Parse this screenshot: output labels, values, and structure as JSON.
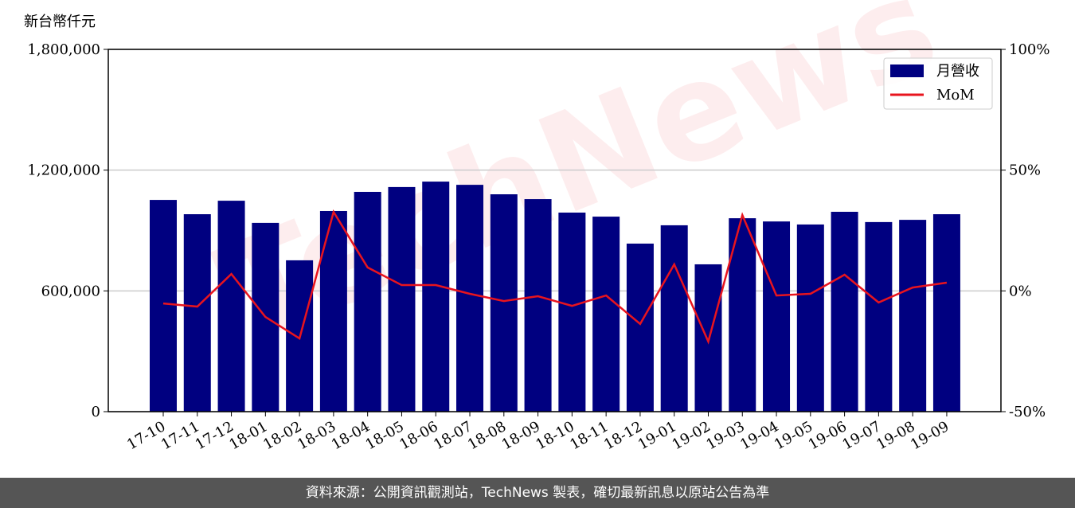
{
  "chart_data": {
    "type": "bar-line",
    "y_label": "新台幣仟元",
    "watermark": "TechNews",
    "categories": [
      "17-10",
      "17-11",
      "17-12",
      "18-01",
      "18-02",
      "18-03",
      "18-04",
      "18-05",
      "18-06",
      "18-07",
      "18-08",
      "18-09",
      "18-10",
      "18-11",
      "18-12",
      "19-01",
      "19-02",
      "19-03",
      "19-04",
      "19-05",
      "19-06",
      "19-07",
      "19-08",
      "19-09"
    ],
    "series": [
      {
        "name": "月營收",
        "color": "#000080",
        "kind": "bar",
        "values": [
          1052000,
          981000,
          1048000,
          938000,
          752000,
          997000,
          1092000,
          1116000,
          1143000,
          1127000,
          1080000,
          1056000,
          989000,
          969000,
          835000,
          926000,
          732000,
          961000,
          945000,
          930000,
          993000,
          942000,
          953000,
          981000
        ]
      },
      {
        "name": "MoM",
        "color": "#e8141e",
        "kind": "line",
        "axis": "y2",
        "values": [
          -5.2,
          -6.5,
          7.0,
          -10.8,
          -19.7,
          32.7,
          9.7,
          2.4,
          2.4,
          -1.2,
          -4.2,
          -2.2,
          -6.2,
          -1.9,
          -13.7,
          11.0,
          -21.0,
          31.4,
          -1.9,
          -1.2,
          6.7,
          -4.8,
          1.4,
          3.4
        ]
      }
    ],
    "ylim": [
      0,
      1800000
    ],
    "yticks": [
      0,
      {
        "value": 600000,
        "label": "600,000"
      },
      {
        "value": 1200000,
        "label": "1,200,000"
      },
      {
        "value": 1800000,
        "label": "1,800,000"
      }
    ],
    "y2lim": [
      -50,
      100
    ],
    "y2ticks": [
      {
        "value": -50,
        "label": "-50%"
      },
      {
        "value": 0,
        "label": "0%"
      },
      {
        "value": 50,
        "label": "50%"
      },
      {
        "value": 100,
        "label": "100%"
      }
    ],
    "grid": true,
    "legend": "upper right",
    "footer": "資料來源：公開資訊觀測站，TechNews 製表，確切最新訊息以原站公告為準"
  }
}
